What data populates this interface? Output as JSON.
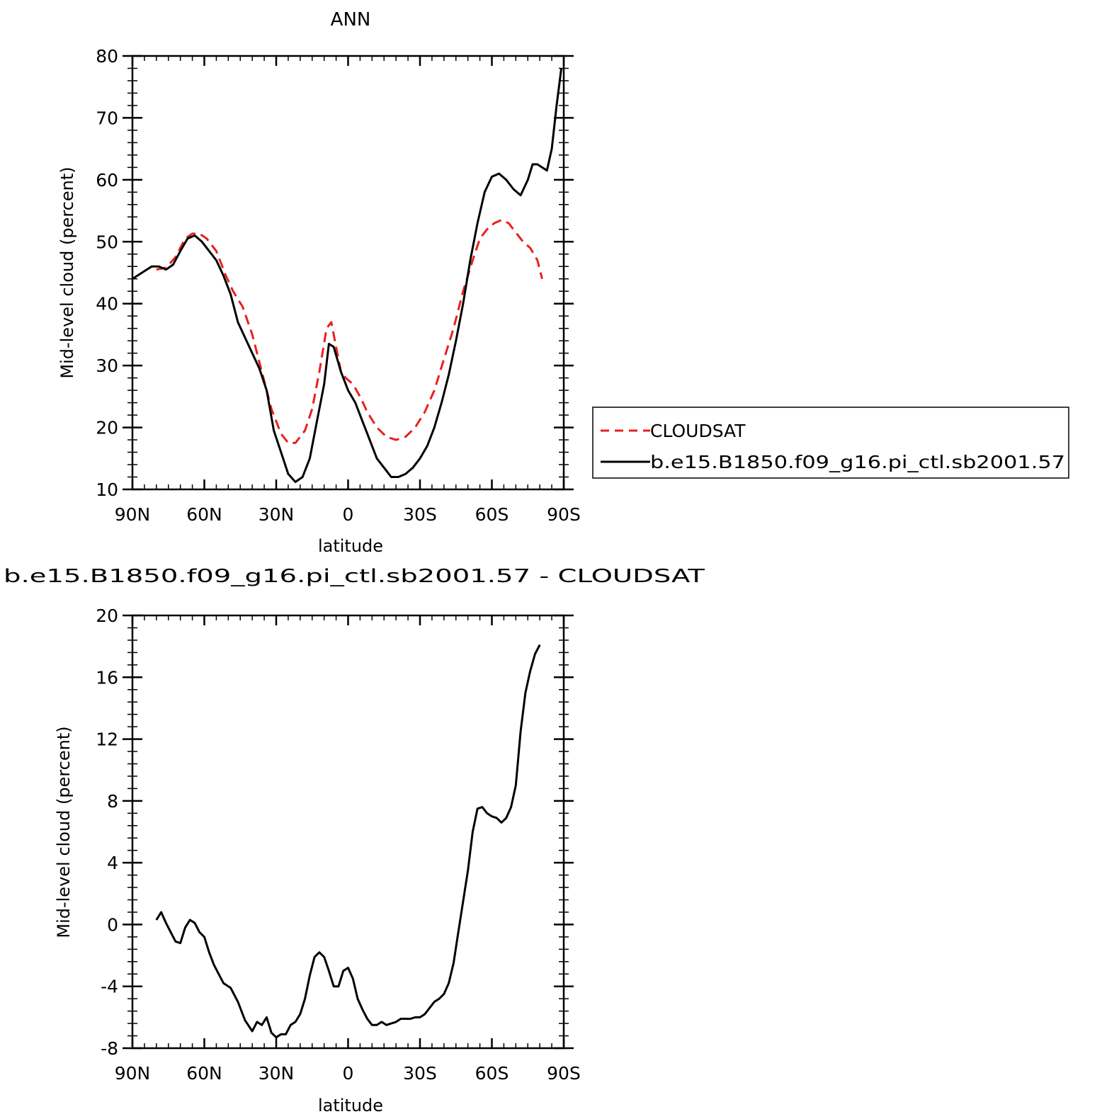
{
  "chart_data": [
    {
      "type": "line",
      "title": "ANN",
      "xlabel": "latitude",
      "ylabel": "Mid-level cloud (percent)",
      "xlim": [
        90,
        -90
      ],
      "ylim": [
        10,
        80
      ],
      "x_ticks": [
        90,
        60,
        30,
        0,
        -30,
        -60,
        -90
      ],
      "x_tick_labels": [
        "90N",
        "60N",
        "30N",
        "0",
        "30S",
        "60S",
        "90S"
      ],
      "y_ticks": [
        10,
        20,
        30,
        40,
        50,
        60,
        70,
        80
      ],
      "y_tick_labels": [
        "10",
        "20",
        "30",
        "40",
        "50",
        "60",
        "70",
        "80"
      ],
      "legend_position": "right",
      "series": [
        {
          "name": "CLOUDSAT",
          "color": "#e8211f",
          "dash": "dashed",
          "points": [
            [
              80,
              45.5
            ],
            [
              76,
              45.8
            ],
            [
              72,
              47.5
            ],
            [
              68,
              50.5
            ],
            [
              65,
              51.3
            ],
            [
              62,
              51.3
            ],
            [
              59,
              50.5
            ],
            [
              55,
              48.5
            ],
            [
              51,
              44.5
            ],
            [
              48,
              42
            ],
            [
              44,
              39.5
            ],
            [
              40,
              35
            ],
            [
              36,
              29
            ],
            [
              32,
              23
            ],
            [
              28,
              19
            ],
            [
              25,
              17.5
            ],
            [
              22,
              17.5
            ],
            [
              18,
              19.5
            ],
            [
              15,
              23
            ],
            [
              12,
              29
            ],
            [
              9,
              36
            ],
            [
              7,
              37
            ],
            [
              5,
              33
            ],
            [
              3,
              29
            ],
            [
              1,
              28
            ],
            [
              -2,
              27
            ],
            [
              -5,
              25
            ],
            [
              -8,
              22.5
            ],
            [
              -12,
              20
            ],
            [
              -16,
              18.5
            ],
            [
              -20,
              18
            ],
            [
              -24,
              18.5
            ],
            [
              -28,
              20
            ],
            [
              -32,
              22.5
            ],
            [
              -36,
              26
            ],
            [
              -40,
              31
            ],
            [
              -44,
              36
            ],
            [
              -48,
              42
            ],
            [
              -52,
              47
            ],
            [
              -55,
              50.5
            ],
            [
              -58,
              52
            ],
            [
              -61,
              53
            ],
            [
              -64,
              53.5
            ],
            [
              -67,
              53
            ],
            [
              -70,
              51.5
            ],
            [
              -73,
              50
            ],
            [
              -76,
              49
            ],
            [
              -79,
              47
            ],
            [
              -81,
              44
            ]
          ]
        },
        {
          "name": "b.e15.B1850.f09_g16.pi_ctl.sb2001.57",
          "color": "#000000",
          "dash": "solid",
          "points": [
            [
              90,
              44
            ],
            [
              86,
              45
            ],
            [
              82,
              46
            ],
            [
              79,
              46
            ],
            [
              76,
              45.5
            ],
            [
              73,
              46.3
            ],
            [
              70,
              48.5
            ],
            [
              67,
              50.5
            ],
            [
              64,
              51
            ],
            [
              61,
              50
            ],
            [
              58,
              48.5
            ],
            [
              55,
              47
            ],
            [
              52,
              44.5
            ],
            [
              49,
              41.5
            ],
            [
              46,
              37
            ],
            [
              43,
              34.5
            ],
            [
              40,
              32
            ],
            [
              37,
              29.5
            ],
            [
              34,
              26
            ],
            [
              31,
              19.5
            ],
            [
              28,
              16
            ],
            [
              25,
              12.5
            ],
            [
              22,
              11.2
            ],
            [
              19,
              12
            ],
            [
              16,
              15
            ],
            [
              13,
              21
            ],
            [
              10,
              27
            ],
            [
              8,
              33.5
            ],
            [
              6,
              33
            ],
            [
              3,
              29
            ],
            [
              0,
              26
            ],
            [
              -3,
              24
            ],
            [
              -6,
              21
            ],
            [
              -9,
              18
            ],
            [
              -12,
              15
            ],
            [
              -15,
              13.5
            ],
            [
              -18,
              12
            ],
            [
              -21,
              12
            ],
            [
              -24,
              12.5
            ],
            [
              -27,
              13.5
            ],
            [
              -30,
              15
            ],
            [
              -33,
              17
            ],
            [
              -36,
              20
            ],
            [
              -39,
              24
            ],
            [
              -42,
              28.5
            ],
            [
              -45,
              34
            ],
            [
              -48,
              40
            ],
            [
              -51,
              47
            ],
            [
              -54,
              53
            ],
            [
              -57,
              58
            ],
            [
              -60,
              60.5
            ],
            [
              -63,
              61
            ],
            [
              -66,
              60
            ],
            [
              -69,
              58.5
            ],
            [
              -72,
              57.5
            ],
            [
              -75,
              60
            ],
            [
              -77,
              62.5
            ],
            [
              -79,
              62.5
            ],
            [
              -81,
              62
            ],
            [
              -83,
              61.5
            ],
            [
              -85,
              65
            ],
            [
              -87,
              72
            ],
            [
              -89,
              78
            ]
          ]
        }
      ]
    },
    {
      "type": "line",
      "title": "b.e15.B1850.f09_g16.pi_ctl.sb2001.57 - CLOUDSAT",
      "xlabel": "latitude",
      "ylabel": "Mid-level cloud (percent)",
      "xlim": [
        90,
        -90
      ],
      "ylim": [
        -8,
        20
      ],
      "x_ticks": [
        90,
        60,
        30,
        0,
        -30,
        -60,
        -90
      ],
      "x_tick_labels": [
        "90N",
        "60N",
        "30N",
        "0",
        "30S",
        "60S",
        "90S"
      ],
      "y_ticks": [
        -8,
        -4,
        0,
        4,
        8,
        12,
        16,
        20
      ],
      "y_tick_labels": [
        "-8",
        "-4",
        "0",
        "4",
        "8",
        "12",
        "16",
        "20"
      ],
      "series": [
        {
          "color": "#000000",
          "dash": "solid",
          "points": [
            [
              80,
              0.3
            ],
            [
              78,
              0.8
            ],
            [
              76,
              0.1
            ],
            [
              74,
              -0.5
            ],
            [
              72,
              -1.1
            ],
            [
              70,
              -1.2
            ],
            [
              68,
              -0.2
            ],
            [
              66,
              0.3
            ],
            [
              64,
              0.1
            ],
            [
              62,
              -0.5
            ],
            [
              60,
              -0.8
            ],
            [
              58,
              -1.8
            ],
            [
              56,
              -2.6
            ],
            [
              54,
              -3.2
            ],
            [
              52,
              -3.8
            ],
            [
              49,
              -4.1
            ],
            [
              46,
              -5
            ],
            [
              43,
              -6.2
            ],
            [
              40,
              -6.9
            ],
            [
              38,
              -6.3
            ],
            [
              36,
              -6.5
            ],
            [
              34,
              -6
            ],
            [
              32,
              -7
            ],
            [
              30,
              -7.3
            ],
            [
              28,
              -7.1
            ],
            [
              26,
              -7.1
            ],
            [
              24,
              -6.5
            ],
            [
              22,
              -6.3
            ],
            [
              20,
              -5.8
            ],
            [
              18,
              -4.8
            ],
            [
              16,
              -3.3
            ],
            [
              14,
              -2.1
            ],
            [
              12,
              -1.8
            ],
            [
              10,
              -2.1
            ],
            [
              8,
              -3
            ],
            [
              6,
              -4
            ],
            [
              4,
              -4
            ],
            [
              2,
              -3
            ],
            [
              0,
              -2.8
            ],
            [
              -2,
              -3.5
            ],
            [
              -4,
              -4.8
            ],
            [
              -6,
              -5.5
            ],
            [
              -8,
              -6.1
            ],
            [
              -10,
              -6.5
            ],
            [
              -12,
              -6.5
            ],
            [
              -14,
              -6.3
            ],
            [
              -16,
              -6.5
            ],
            [
              -18,
              -6.4
            ],
            [
              -20,
              -6.3
            ],
            [
              -22,
              -6.1
            ],
            [
              -24,
              -6.1
            ],
            [
              -26,
              -6.1
            ],
            [
              -28,
              -6
            ],
            [
              -30,
              -6
            ],
            [
              -32,
              -5.8
            ],
            [
              -34,
              -5.4
            ],
            [
              -36,
              -5
            ],
            [
              -38,
              -4.8
            ],
            [
              -40,
              -4.5
            ],
            [
              -42,
              -3.8
            ],
            [
              -44,
              -2.5
            ],
            [
              -46,
              -0.5
            ],
            [
              -48,
              1.5
            ],
            [
              -50,
              3.5
            ],
            [
              -52,
              6
            ],
            [
              -54,
              7.5
            ],
            [
              -56,
              7.6
            ],
            [
              -58,
              7.2
            ],
            [
              -60,
              7
            ],
            [
              -62,
              6.9
            ],
            [
              -64,
              6.6
            ],
            [
              -66,
              6.9
            ],
            [
              -68,
              7.6
            ],
            [
              -70,
              9
            ],
            [
              -72,
              12.5
            ],
            [
              -74,
              15
            ],
            [
              -76,
              16.4
            ],
            [
              -78,
              17.5
            ],
            [
              -80,
              18.1
            ]
          ]
        }
      ]
    }
  ]
}
